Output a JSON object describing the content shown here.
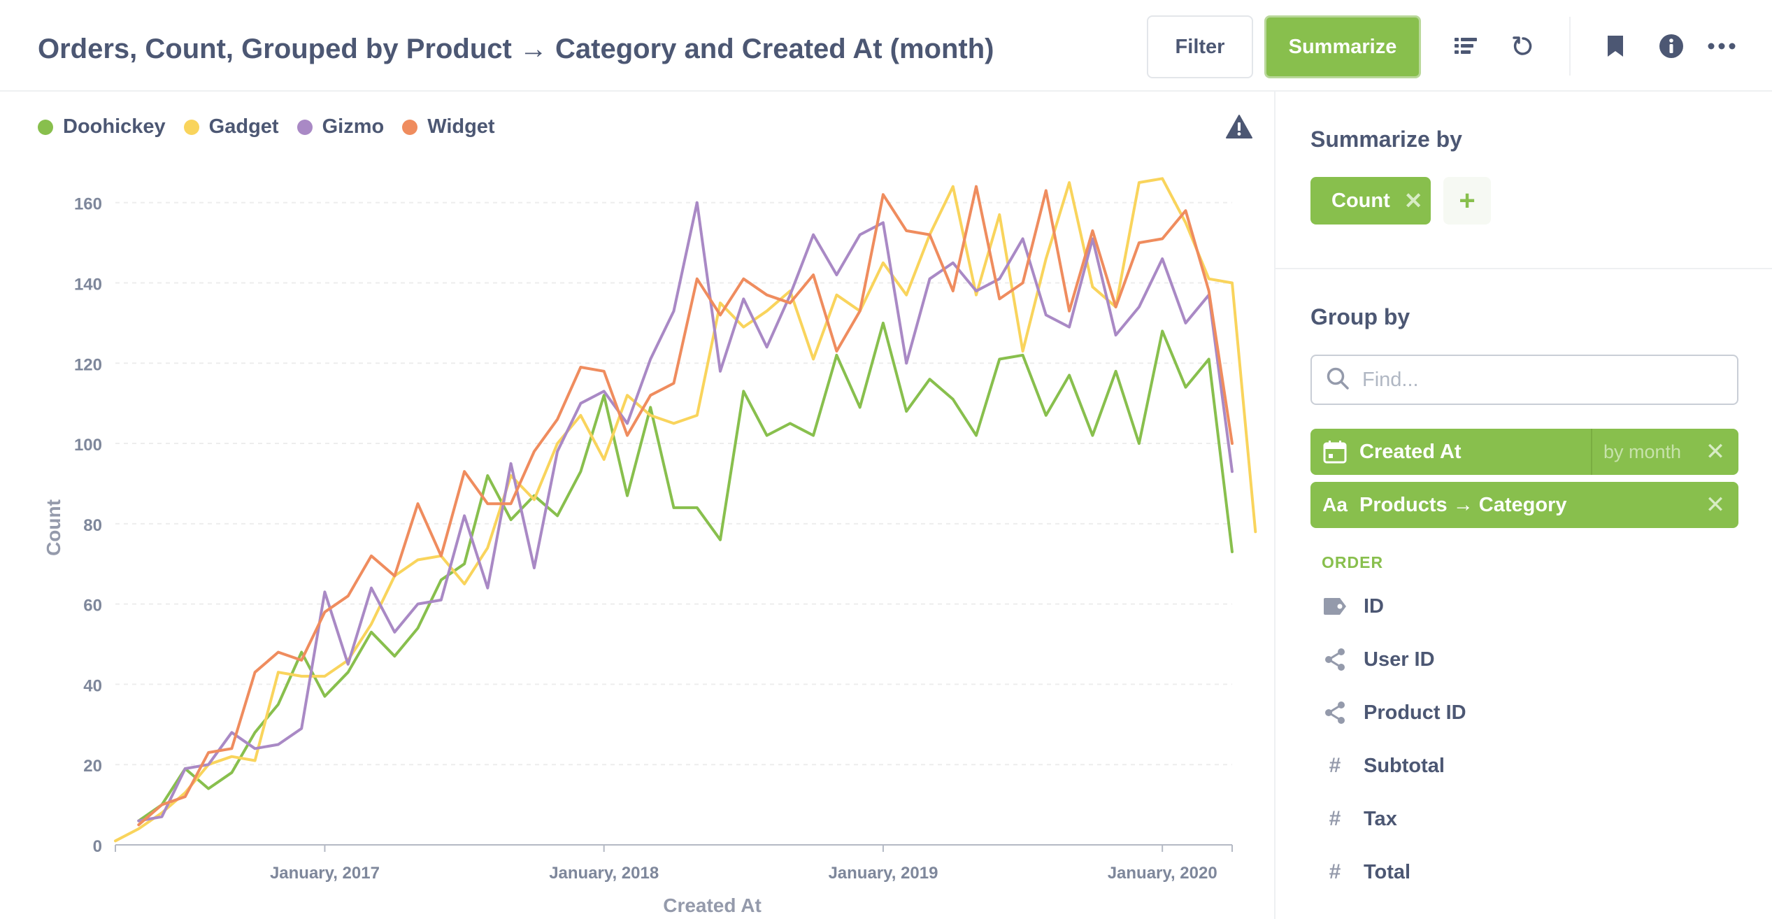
{
  "header": {
    "title": "Orders, Count, Grouped by Product → Category and Created At (month)",
    "filter_label": "Filter",
    "summarize_label": "Summarize",
    "icons": [
      "list-icon",
      "refresh-icon",
      "bookmark-icon",
      "info-icon",
      "more-icon"
    ]
  },
  "legend": [
    {
      "name": "Doohickey",
      "color": "#88bf4d"
    },
    {
      "name": "Gadget",
      "color": "#f9d45c"
    },
    {
      "name": "Gizmo",
      "color": "#a989c5"
    },
    {
      "name": "Widget",
      "color": "#ef8c5e"
    }
  ],
  "chart_data": {
    "type": "line",
    "xlabel": "Created At",
    "ylabel": "Count",
    "ylim": [
      0,
      165
    ],
    "yticks": [
      0,
      20,
      40,
      60,
      80,
      100,
      120,
      140,
      160
    ],
    "x_start": "2016-04",
    "x_end": "2020-04",
    "x_tick_labels": [
      "January, 2017",
      "January, 2018",
      "January, 2019",
      "January, 2020"
    ],
    "grid": true,
    "legend_position": "top-left",
    "series": [
      {
        "name": "Doohickey",
        "color": "#88bf4d",
        "start": "2016-05",
        "values": [
          6,
          10,
          19,
          14,
          18,
          28,
          35,
          48,
          37,
          43,
          53,
          47,
          54,
          66,
          70,
          92,
          81,
          87,
          82,
          93,
          112,
          87,
          109,
          84,
          84,
          76,
          113,
          102,
          105,
          102,
          122,
          109,
          130,
          108,
          116,
          111,
          102,
          121,
          122,
          107,
          117,
          102,
          118,
          100,
          128,
          114,
          121,
          73
        ]
      },
      {
        "name": "Gadget",
        "color": "#f9d45c",
        "start": "2016-04",
        "values": [
          1,
          4,
          8,
          13,
          20,
          22,
          21,
          43,
          42,
          42,
          46,
          55,
          67,
          71,
          72,
          65,
          74,
          92,
          86,
          100,
          107,
          96,
          112,
          107,
          105,
          107,
          135,
          129,
          133,
          138,
          121,
          137,
          133,
          145,
          137,
          152,
          164,
          137,
          157,
          123,
          146,
          165,
          139,
          134,
          165,
          166,
          155,
          141,
          140,
          78
        ]
      },
      {
        "name": "Gizmo",
        "color": "#a989c5",
        "start": "2016-05",
        "values": [
          6,
          7,
          19,
          20,
          28,
          24,
          25,
          29,
          63,
          45,
          64,
          53,
          60,
          61,
          82,
          64,
          95,
          69,
          98,
          110,
          113,
          105,
          121,
          133,
          160,
          118,
          136,
          124,
          137,
          152,
          142,
          152,
          155,
          120,
          141,
          145,
          138,
          141,
          151,
          132,
          129,
          151,
          127,
          134,
          146,
          130,
          137,
          93
        ]
      },
      {
        "name": "Widget",
        "color": "#ef8c5e",
        "start": "2016-05",
        "values": [
          5,
          10,
          12,
          23,
          24,
          43,
          48,
          46,
          58,
          62,
          72,
          67,
          85,
          72,
          93,
          85,
          85,
          98,
          106,
          119,
          118,
          102,
          112,
          115,
          141,
          132,
          141,
          137,
          135,
          142,
          123,
          133,
          162,
          153,
          152,
          138,
          164,
          136,
          140,
          163,
          133,
          153,
          134,
          150,
          151,
          158,
          138,
          100
        ]
      }
    ]
  },
  "sidebar": {
    "summarize_heading": "Summarize by",
    "metric_label": "Count",
    "add_label": "+",
    "group_heading": "Group by",
    "search_placeholder": "Find...",
    "groupings": [
      {
        "label": "Created At",
        "bucket": "by month",
        "icon": "calendar-icon"
      },
      {
        "label": "Products → Category",
        "icon_text": "Aa"
      }
    ],
    "section_label": "ORDER",
    "fields": [
      {
        "label": "ID",
        "icon": "label-icon"
      },
      {
        "label": "User ID",
        "icon": "connections-icon"
      },
      {
        "label": "Product ID",
        "icon": "connections-icon"
      },
      {
        "label": "Subtotal",
        "icon": "#"
      },
      {
        "label": "Tax",
        "icon": "#"
      },
      {
        "label": "Total",
        "icon": "#"
      }
    ]
  }
}
